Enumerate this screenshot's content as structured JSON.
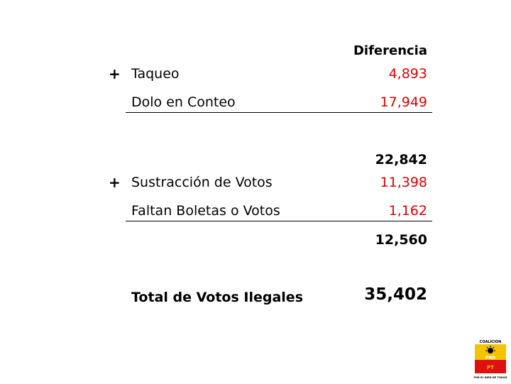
{
  "table": {
    "header": "Diferencia",
    "group1": {
      "plus": "+",
      "rows": [
        {
          "label": "Taqueo",
          "value": "4,893"
        },
        {
          "label": "Dolo en Conteo",
          "value": "17,949"
        }
      ],
      "subtotal": "22,842"
    },
    "group2": {
      "plus": "+",
      "rows": [
        {
          "label": "Sustracción de Votos",
          "value": "11,398"
        },
        {
          "label": "Faltan Boletas o Votos",
          "value": "1,162"
        }
      ],
      "subtotal": "12,560"
    },
    "total": {
      "label": "Total de Votos Ilegales",
      "value": "35,402"
    }
  },
  "logo": {
    "top_text": "COALICION",
    "party1": "PRD",
    "party2": "PT",
    "bottom_text": "POR EL BIEN DE TODOS",
    "colors": {
      "yellow": "#f5c400",
      "red": "#e01010"
    }
  },
  "colors": {
    "value_red": "#e00000"
  }
}
